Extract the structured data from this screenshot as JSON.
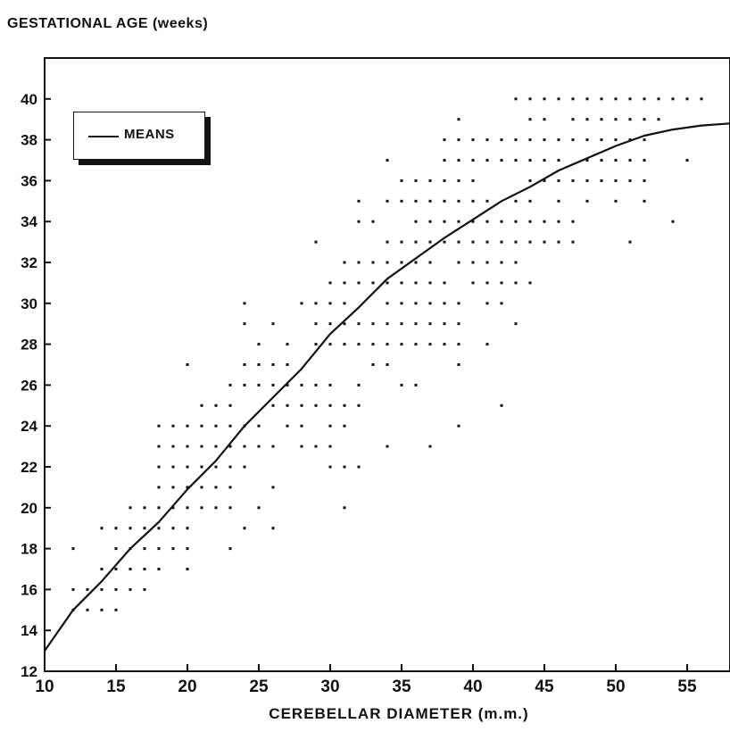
{
  "chart_data": {
    "type": "scatter",
    "ylabel": "GESTATIONAL AGE (weeks)",
    "xlabel": "CEREBELLAR DIAMETER (m.m.)",
    "xlim": [
      10,
      58
    ],
    "ylim": [
      12,
      42
    ],
    "xticks": [
      10,
      15,
      20,
      25,
      30,
      35,
      40,
      45,
      50,
      55
    ],
    "yticks": [
      12,
      14,
      16,
      18,
      20,
      22,
      24,
      26,
      28,
      30,
      32,
      34,
      36,
      38,
      40
    ],
    "grid": false,
    "legend": {
      "placement": "top-left",
      "entries": [
        "MEANS"
      ]
    },
    "series": [
      {
        "name": "MEANS",
        "kind": "line",
        "points": [
          [
            10,
            13
          ],
          [
            12,
            15
          ],
          [
            14,
            16.4
          ],
          [
            16,
            18
          ],
          [
            18,
            19.3
          ],
          [
            20,
            20.9
          ],
          [
            22,
            22.3
          ],
          [
            24,
            24
          ],
          [
            26,
            25.4
          ],
          [
            28,
            26.8
          ],
          [
            30,
            28.5
          ],
          [
            32,
            29.8
          ],
          [
            34,
            31.2
          ],
          [
            36,
            32.2
          ],
          [
            38,
            33.2
          ],
          [
            40,
            34.1
          ],
          [
            42,
            35
          ],
          [
            44,
            35.7
          ],
          [
            46,
            36.5
          ],
          [
            48,
            37.1
          ],
          [
            50,
            37.7
          ],
          [
            52,
            38.2
          ],
          [
            54,
            38.5
          ],
          [
            56,
            38.7
          ],
          [
            58,
            38.8
          ]
        ]
      },
      {
        "kind": "scatter",
        "points": [
          [
            12,
            18
          ],
          [
            12,
            16
          ],
          [
            13,
            16
          ],
          [
            14,
            16
          ],
          [
            12,
            15
          ],
          [
            13,
            15
          ],
          [
            14,
            15
          ],
          [
            15,
            15
          ],
          [
            14,
            19
          ],
          [
            15,
            19
          ],
          [
            16,
            19
          ],
          [
            17,
            19
          ],
          [
            14,
            17
          ],
          [
            15,
            17
          ],
          [
            16,
            17
          ],
          [
            15,
            18
          ],
          [
            16,
            18
          ],
          [
            17,
            18
          ],
          [
            15,
            16
          ],
          [
            16,
            16
          ],
          [
            17,
            16
          ],
          [
            16,
            20
          ],
          [
            17,
            20
          ],
          [
            18,
            20
          ],
          [
            19,
            20
          ],
          [
            18,
            19
          ],
          [
            19,
            19
          ],
          [
            20,
            19
          ],
          [
            18,
            18
          ],
          [
            19,
            18
          ],
          [
            20,
            18
          ],
          [
            17,
            17
          ],
          [
            18,
            17
          ],
          [
            20,
            17
          ],
          [
            18,
            24
          ],
          [
            19,
            24
          ],
          [
            20,
            24
          ],
          [
            21,
            24
          ],
          [
            22,
            24
          ],
          [
            18,
            23
          ],
          [
            19,
            23
          ],
          [
            20,
            23
          ],
          [
            21,
            23
          ],
          [
            22,
            23
          ],
          [
            23,
            23
          ],
          [
            18,
            22
          ],
          [
            19,
            22
          ],
          [
            20,
            22
          ],
          [
            21,
            22
          ],
          [
            22,
            22
          ],
          [
            23,
            22
          ],
          [
            24,
            22
          ],
          [
            18,
            21
          ],
          [
            19,
            21
          ],
          [
            20,
            21
          ],
          [
            21,
            21
          ],
          [
            22,
            21
          ],
          [
            23,
            21
          ],
          [
            20,
            20
          ],
          [
            21,
            20
          ],
          [
            22,
            20
          ],
          [
            23,
            20
          ],
          [
            20,
            27
          ],
          [
            21,
            25
          ],
          [
            22,
            25
          ],
          [
            23,
            25
          ],
          [
            23,
            26
          ],
          [
            24,
            26
          ],
          [
            25,
            26
          ],
          [
            26,
            26
          ],
          [
            23,
            24
          ],
          [
            24,
            24
          ],
          [
            25,
            24
          ],
          [
            24,
            23
          ],
          [
            25,
            23
          ],
          [
            26,
            23
          ],
          [
            24,
            19
          ],
          [
            26,
            19
          ],
          [
            25,
            20
          ],
          [
            26,
            21
          ],
          [
            23,
            18
          ],
          [
            24,
            30
          ],
          [
            24,
            29
          ],
          [
            26,
            29
          ],
          [
            25,
            28
          ],
          [
            27,
            28
          ],
          [
            24,
            27
          ],
          [
            25,
            27
          ],
          [
            26,
            27
          ],
          [
            27,
            27
          ],
          [
            27,
            26
          ],
          [
            28,
            26
          ],
          [
            29,
            26
          ],
          [
            30,
            26
          ],
          [
            26,
            25
          ],
          [
            27,
            25
          ],
          [
            28,
            25
          ],
          [
            29,
            25
          ],
          [
            30,
            25
          ],
          [
            31,
            25
          ],
          [
            32,
            25
          ],
          [
            27,
            24
          ],
          [
            28,
            24
          ],
          [
            28,
            23
          ],
          [
            29,
            23
          ],
          [
            30,
            23
          ],
          [
            30,
            22
          ],
          [
            31,
            22
          ],
          [
            32,
            22
          ],
          [
            31,
            20
          ],
          [
            30,
            24
          ],
          [
            31,
            24
          ],
          [
            32,
            26
          ],
          [
            33,
            27
          ],
          [
            28,
            30
          ],
          [
            29,
            30
          ],
          [
            30,
            30
          ],
          [
            31,
            30
          ],
          [
            29,
            29
          ],
          [
            30,
            29
          ],
          [
            31,
            29
          ],
          [
            32,
            29
          ],
          [
            33,
            29
          ],
          [
            29,
            28
          ],
          [
            30,
            28
          ],
          [
            31,
            28
          ],
          [
            32,
            28
          ],
          [
            33,
            28
          ],
          [
            29,
            33
          ],
          [
            30,
            31
          ],
          [
            31,
            31
          ],
          [
            32,
            31
          ],
          [
            33,
            31
          ],
          [
            31,
            32
          ],
          [
            32,
            32
          ],
          [
            33,
            32
          ],
          [
            32,
            35
          ],
          [
            32,
            34
          ],
          [
            33,
            34
          ],
          [
            34,
            37
          ],
          [
            34,
            35
          ],
          [
            35,
            35
          ],
          [
            34,
            33
          ],
          [
            35,
            33
          ],
          [
            36,
            33
          ],
          [
            37,
            33
          ],
          [
            34,
            32
          ],
          [
            35,
            32
          ],
          [
            36,
            32
          ],
          [
            37,
            32
          ],
          [
            34,
            31
          ],
          [
            35,
            31
          ],
          [
            36,
            31
          ],
          [
            37,
            31
          ],
          [
            38,
            31
          ],
          [
            34,
            30
          ],
          [
            35,
            30
          ],
          [
            36,
            30
          ],
          [
            37,
            30
          ],
          [
            38,
            30
          ],
          [
            39,
            30
          ],
          [
            34,
            29
          ],
          [
            35,
            29
          ],
          [
            36,
            29
          ],
          [
            37,
            29
          ],
          [
            38,
            29
          ],
          [
            39,
            29
          ],
          [
            34,
            28
          ],
          [
            35,
            28
          ],
          [
            36,
            28
          ],
          [
            37,
            28
          ],
          [
            38,
            28
          ],
          [
            39,
            28
          ],
          [
            34,
            27
          ],
          [
            35,
            26
          ],
          [
            36,
            26
          ],
          [
            34,
            23
          ],
          [
            37,
            23
          ],
          [
            39,
            24
          ],
          [
            39,
            27
          ],
          [
            35,
            36
          ],
          [
            36,
            36
          ],
          [
            37,
            36
          ],
          [
            38,
            36
          ],
          [
            39,
            36
          ],
          [
            40,
            36
          ],
          [
            36,
            35
          ],
          [
            37,
            35
          ],
          [
            38,
            35
          ],
          [
            39,
            35
          ],
          [
            40,
            35
          ],
          [
            41,
            35
          ],
          [
            36,
            34
          ],
          [
            37,
            34
          ],
          [
            38,
            34
          ],
          [
            39,
            34
          ],
          [
            40,
            34
          ],
          [
            41,
            34
          ],
          [
            38,
            33
          ],
          [
            39,
            33
          ],
          [
            40,
            33
          ],
          [
            41,
            33
          ],
          [
            42,
            33
          ],
          [
            39,
            32
          ],
          [
            40,
            32
          ],
          [
            41,
            32
          ],
          [
            42,
            32
          ],
          [
            43,
            32
          ],
          [
            40,
            31
          ],
          [
            41,
            31
          ],
          [
            42,
            31
          ],
          [
            43,
            31
          ],
          [
            44,
            31
          ],
          [
            39,
            39
          ],
          [
            38,
            38
          ],
          [
            39,
            38
          ],
          [
            40,
            38
          ],
          [
            41,
            38
          ],
          [
            42,
            38
          ],
          [
            43,
            38
          ],
          [
            38,
            37
          ],
          [
            39,
            37
          ],
          [
            40,
            37
          ],
          [
            41,
            37
          ],
          [
            42,
            37
          ],
          [
            43,
            37
          ],
          [
            41,
            30
          ],
          [
            42,
            30
          ],
          [
            41,
            28
          ],
          [
            42,
            25
          ],
          [
            43,
            29
          ],
          [
            43,
            40
          ],
          [
            44,
            40
          ],
          [
            45,
            40
          ],
          [
            46,
            40
          ],
          [
            47,
            40
          ],
          [
            48,
            40
          ],
          [
            49,
            40
          ],
          [
            50,
            40
          ],
          [
            51,
            40
          ],
          [
            52,
            40
          ],
          [
            53,
            40
          ],
          [
            54,
            40
          ],
          [
            55,
            40
          ],
          [
            56,
            40
          ],
          [
            44,
            39
          ],
          [
            45,
            39
          ],
          [
            47,
            39
          ],
          [
            48,
            39
          ],
          [
            49,
            39
          ],
          [
            50,
            39
          ],
          [
            51,
            39
          ],
          [
            52,
            39
          ],
          [
            53,
            39
          ],
          [
            44,
            38
          ],
          [
            45,
            38
          ],
          [
            46,
            38
          ],
          [
            47,
            38
          ],
          [
            48,
            38
          ],
          [
            49,
            38
          ],
          [
            50,
            38
          ],
          [
            51,
            38
          ],
          [
            52,
            38
          ],
          [
            44,
            37
          ],
          [
            45,
            37
          ],
          [
            46,
            37
          ],
          [
            48,
            37
          ],
          [
            49,
            37
          ],
          [
            50,
            37
          ],
          [
            51,
            37
          ],
          [
            52,
            37
          ],
          [
            55,
            37
          ],
          [
            44,
            36
          ],
          [
            45,
            36
          ],
          [
            46,
            36
          ],
          [
            47,
            36
          ],
          [
            48,
            36
          ],
          [
            49,
            36
          ],
          [
            50,
            36
          ],
          [
            51,
            36
          ],
          [
            52,
            36
          ],
          [
            43,
            35
          ],
          [
            44,
            35
          ],
          [
            46,
            35
          ],
          [
            48,
            35
          ],
          [
            50,
            35
          ],
          [
            52,
            35
          ],
          [
            42,
            34
          ],
          [
            43,
            34
          ],
          [
            44,
            34
          ],
          [
            45,
            34
          ],
          [
            46,
            34
          ],
          [
            47,
            34
          ],
          [
            54,
            34
          ],
          [
            43,
            33
          ],
          [
            44,
            33
          ],
          [
            45,
            33
          ],
          [
            46,
            33
          ],
          [
            47,
            33
          ],
          [
            51,
            33
          ]
        ]
      }
    ]
  }
}
